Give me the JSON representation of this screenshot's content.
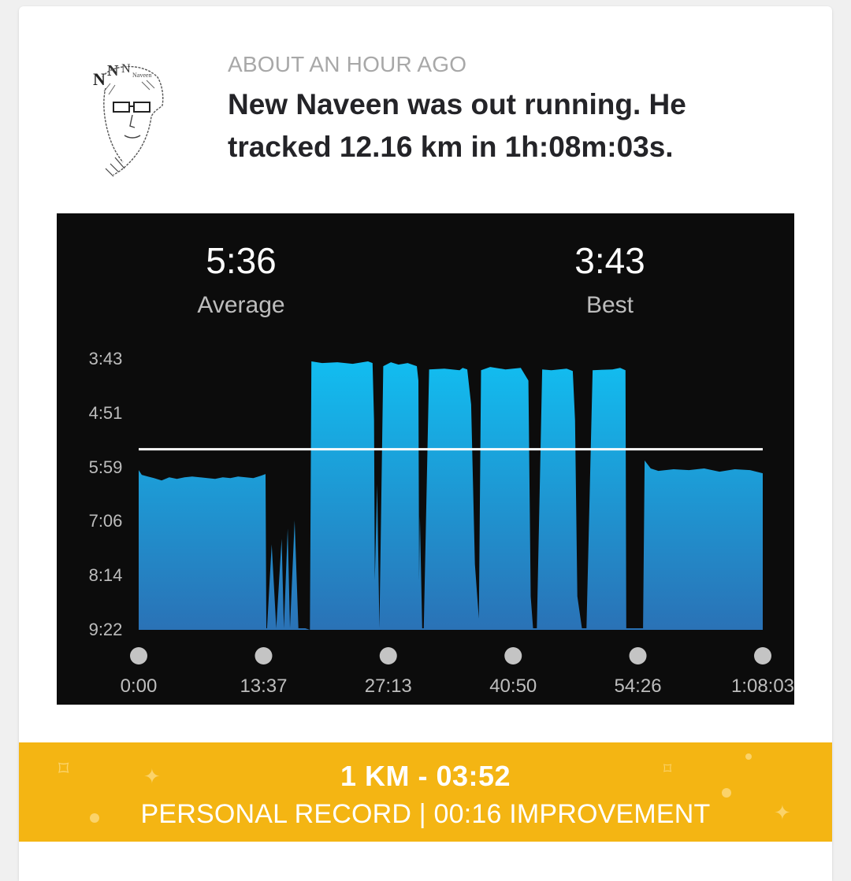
{
  "activity": {
    "time_ago": "ABOUT AN HOUR AGO",
    "headline": "New Naveen was out running. He tracked 12.16 km in 1h:08m:03s."
  },
  "avatar": {
    "icon": "avatar-sketch",
    "letters": [
      "N",
      "N",
      "N",
      "Naveen"
    ]
  },
  "stats": {
    "average_value": "5:36",
    "average_label": "Average",
    "best_value": "3:43",
    "best_label": "Best"
  },
  "chart_data": {
    "type": "area",
    "y_tick_labels": [
      "3:43",
      "4:51",
      "5:59",
      "7:06",
      "8:14",
      "9:22"
    ],
    "y_ticks_seconds": [
      223,
      291,
      359,
      426,
      494,
      562
    ],
    "y_axis_inverted": true,
    "x_tick_labels": [
      "0:00",
      "13:37",
      "27:13",
      "40:50",
      "54:26",
      "1:08:03"
    ],
    "x_ticks_seconds": [
      0,
      817,
      1633,
      2450,
      3266,
      4083
    ],
    "average_line_seconds": 336,
    "average_line_label": "5:36",
    "grid": false,
    "colors": {
      "fill_top": "#12bdf0",
      "fill_bottom": "#2a72b6",
      "average_line": "#ffffff",
      "background": "#0c0c0c"
    },
    "series": [
      {
        "x": [
          0,
          20,
          60,
          100,
          150,
          200,
          250,
          300,
          350,
          400,
          450,
          500,
          550,
          600,
          650,
          700,
          750,
          800,
          830,
          835,
          840,
          870,
          900,
          935,
          950,
          975,
          990,
          1020,
          1045,
          1055,
          1060,
          1090,
          1120,
          1130,
          1200,
          1300,
          1400,
          1500,
          1530,
          1540,
          1545,
          1560,
          1575,
          1600,
          1650,
          1700,
          1760,
          1820,
          1830,
          1835,
          1840,
          1855,
          1865,
          1900,
          2000,
          2100,
          2120,
          2150,
          2175,
          2200,
          2230,
          2225,
          2240,
          2300,
          2400,
          2500,
          2550,
          2565,
          2580,
          2600,
          2605,
          2640,
          2700,
          2800,
          2840,
          2855,
          2870,
          2900,
          2920,
          2930,
          2970,
          3100,
          3150,
          3185,
          3190,
          3300,
          3310,
          3350,
          3400,
          3500,
          3600,
          3700,
          3800,
          3900,
          4000,
          4083
        ],
        "y": [
          362,
          368,
          370,
          372,
          375,
          371,
          373,
          371,
          370,
          371,
          372,
          373,
          371,
          372,
          370,
          371,
          372,
          369,
          367,
          560,
          560,
          455,
          560,
          448,
          560,
          435,
          560,
          425,
          560,
          560,
          560,
          560,
          562,
          226,
          228,
          227,
          229,
          226,
          228,
          300,
          500,
          380,
          560,
          232,
          227,
          230,
          228,
          232,
          250,
          500,
          420,
          560,
          560,
          236,
          235,
          237,
          234,
          236,
          280,
          480,
          560,
          560,
          237,
          233,
          236,
          234,
          250,
          520,
          560,
          560,
          560,
          236,
          237,
          235,
          238,
          300,
          520,
          560,
          560,
          560,
          237,
          236,
          234,
          237,
          560,
          560,
          350,
          360,
          363,
          361,
          362,
          360,
          364,
          361,
          362,
          366
        ]
      }
    ]
  },
  "record": {
    "value": "1 KM  -  03:52",
    "subtitle": "PERSONAL RECORD  |  00:16 IMPROVEMENT"
  }
}
